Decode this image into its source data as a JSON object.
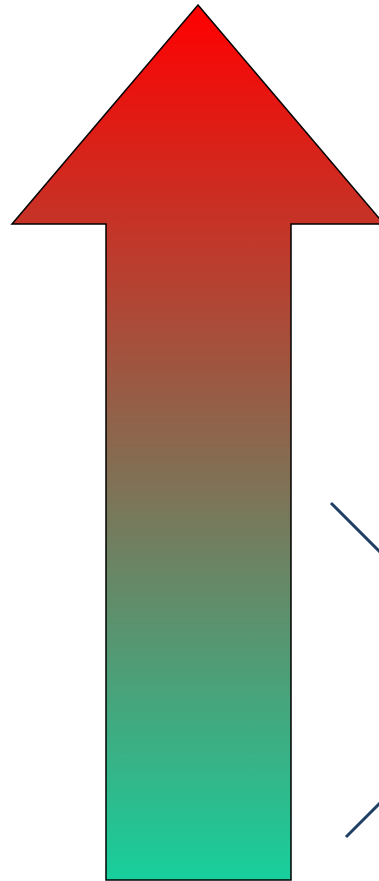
{
  "graphic": {
    "arrow": {
      "direction": "up",
      "gradient_top_color": "#ff0000",
      "gradient_bottom_color": "#17cf9c",
      "outline_color": "#000000"
    },
    "edge_strokes": {
      "color": "#1f3f66",
      "count": 2
    }
  }
}
